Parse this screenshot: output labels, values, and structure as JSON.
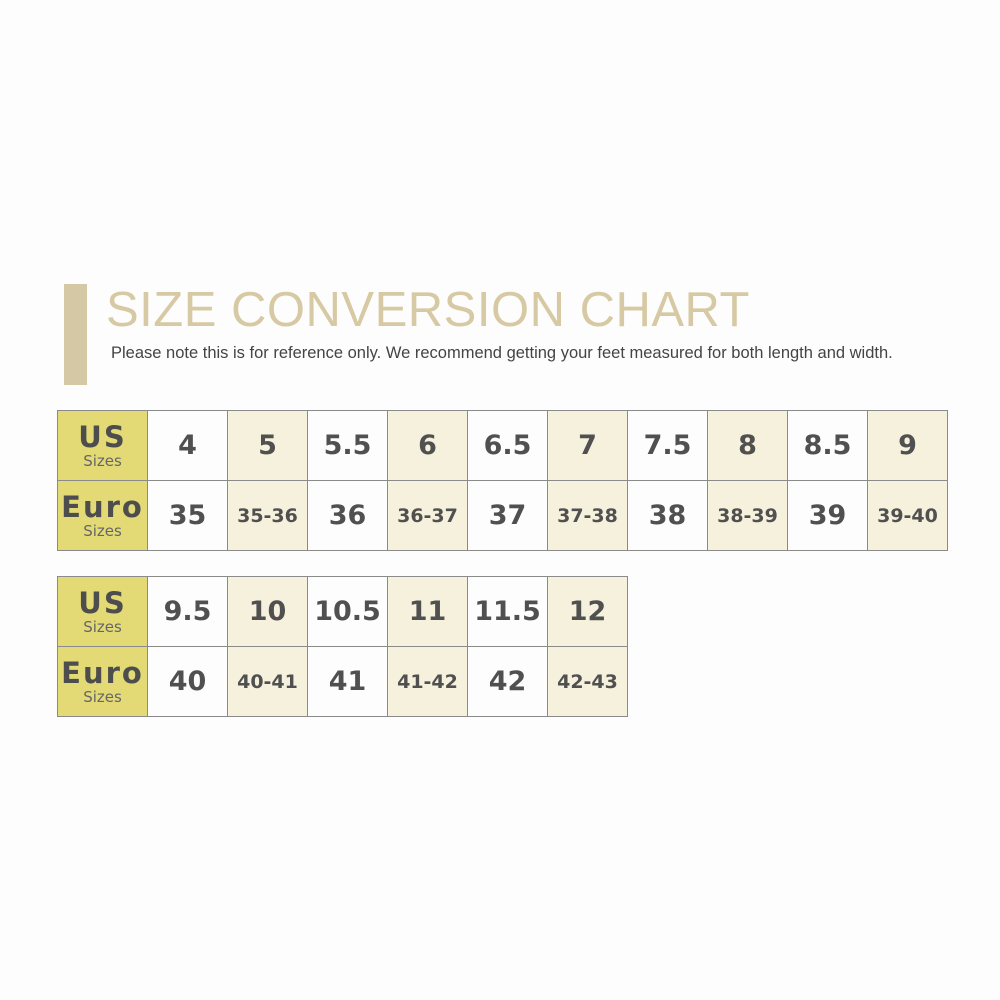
{
  "title": "SIZE CONVERSION CHART",
  "note": "Please note this is for reference only. We recommend getting your feet measured for both length and width.",
  "row_labels": {
    "us": "US",
    "euro": "Euro",
    "sub": "Sizes"
  },
  "colors": {
    "accent_bar": "#d5c9a5",
    "header_cell": "#e3da75",
    "alt_cell": "#f6f1dc"
  },
  "tables": [
    {
      "us": [
        "4",
        "5",
        "5.5",
        "6",
        "6.5",
        "7",
        "7.5",
        "8",
        "8.5",
        "9"
      ],
      "euro": [
        "35",
        "35-36",
        "36",
        "36-37",
        "37",
        "37-38",
        "38",
        "38-39",
        "39",
        "39-40"
      ]
    },
    {
      "us": [
        "9.5",
        "10",
        "10.5",
        "11",
        "11.5",
        "12"
      ],
      "euro": [
        "40",
        "40-41",
        "41",
        "41-42",
        "42",
        "42-43"
      ]
    }
  ]
}
